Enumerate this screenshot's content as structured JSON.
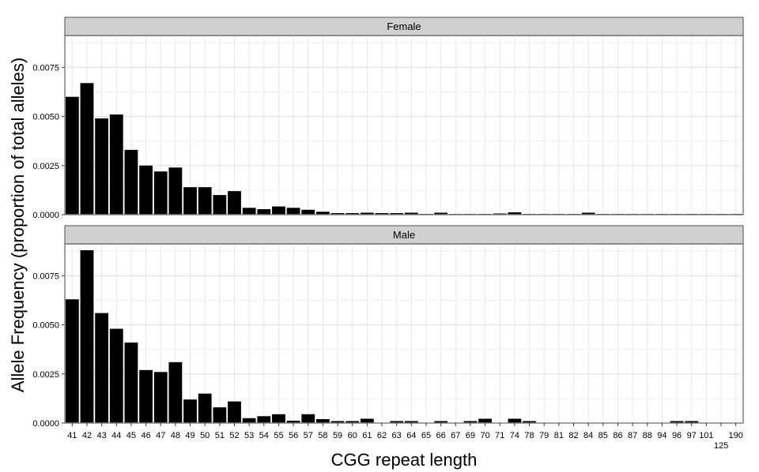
{
  "chart_data": {
    "type": "bar",
    "xlabel": "CGG repeat length",
    "ylabel": "Allele Frequency (proportion of total alleles)",
    "ylim": [
      0,
      0.0088
    ],
    "yticks": [
      "0.0000",
      "0.0025",
      "0.0050",
      "0.0075"
    ],
    "categories": [
      "41",
      "42",
      "43",
      "44",
      "45",
      "46",
      "47",
      "48",
      "49",
      "50",
      "51",
      "52",
      "53",
      "54",
      "55",
      "56",
      "57",
      "58",
      "59",
      "60",
      "61",
      "62",
      "63",
      "64",
      "65",
      "66",
      "67",
      "69",
      "70",
      "71",
      "74",
      "78",
      "79",
      "81",
      "82",
      "84",
      "85",
      "86",
      "87",
      "88",
      "94",
      "96",
      "97",
      "101",
      "125",
      "190"
    ],
    "grid": true,
    "panels": [
      {
        "strip": "Female",
        "values": [
          0.006,
          0.0067,
          0.0049,
          0.0051,
          0.0033,
          0.0025,
          0.0022,
          0.0024,
          0.0014,
          0.0014,
          0.001,
          0.0012,
          0.00035,
          0.00028,
          0.00042,
          0.00035,
          0.00025,
          0.00015,
          8e-05,
          8e-05,
          0.0001,
          8e-05,
          8e-05,
          0.0001,
          2e-05,
          0.0001,
          2e-05,
          2e-05,
          4e-05,
          6e-05,
          0.00012,
          4e-05,
          4e-05,
          2e-05,
          4e-05,
          0.0001,
          2e-05,
          2e-05,
          2e-05,
          2e-05,
          2e-05,
          2e-05,
          2e-05,
          2e-05,
          2e-05,
          2e-05
        ]
      },
      {
        "strip": "Male",
        "values": [
          0.0063,
          0.0088,
          0.0056,
          0.0048,
          0.0041,
          0.0027,
          0.0026,
          0.0031,
          0.0012,
          0.0015,
          0.0008,
          0.0011,
          0.00025,
          0.00035,
          0.00045,
          0.00012,
          0.00045,
          0.0002,
          0.0001,
          0.0001,
          0.00022,
          0,
          0.0001,
          0.0001,
          0,
          0.0001,
          0,
          0.0001,
          0.00022,
          0,
          0.00022,
          0.0001,
          0,
          0,
          0,
          0,
          0,
          0,
          0,
          0,
          0,
          0.0001,
          0.0001,
          0,
          0,
          0
        ]
      }
    ]
  }
}
